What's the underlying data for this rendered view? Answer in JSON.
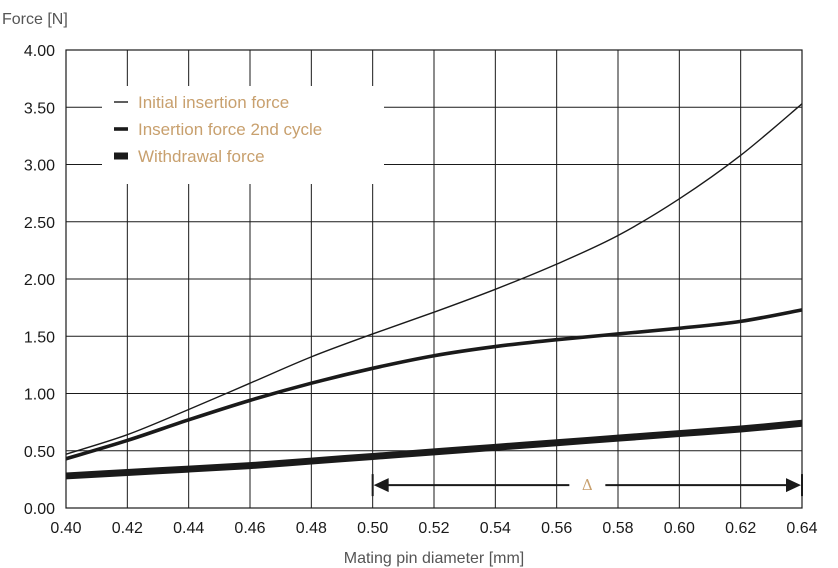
{
  "chart_data": {
    "type": "line",
    "xlabel": "Mating pin diameter [mm]",
    "ylabel": "Force [N]",
    "xlim": [
      0.4,
      0.64
    ],
    "ylim": [
      0.0,
      4.0
    ],
    "x_ticks": [
      "0.40",
      "0.42",
      "0.44",
      "0.46",
      "0.48",
      "0.50",
      "0.52",
      "0.54",
      "0.56",
      "0.58",
      "0.60",
      "0.62",
      "0.64"
    ],
    "y_ticks": [
      "0.00",
      "0.50",
      "1.00",
      "1.50",
      "2.00",
      "2.50",
      "3.00",
      "3.50",
      "4.00"
    ],
    "grid": true,
    "legend_position": "top-left",
    "series": [
      {
        "name": "Initial insertion force",
        "color": "#1a1a1a",
        "weight": "thin",
        "x": [
          0.4,
          0.42,
          0.44,
          0.46,
          0.48,
          0.5,
          0.52,
          0.54,
          0.56,
          0.58,
          0.6,
          0.62,
          0.64
        ],
        "y": [
          0.47,
          0.64,
          0.86,
          1.09,
          1.32,
          1.52,
          1.71,
          1.91,
          2.13,
          2.38,
          2.7,
          3.08,
          3.53
        ]
      },
      {
        "name": "Insertion force 2nd cycle",
        "color": "#1a1a1a",
        "weight": "medium",
        "x": [
          0.4,
          0.42,
          0.44,
          0.46,
          0.48,
          0.5,
          0.52,
          0.54,
          0.56,
          0.58,
          0.6,
          0.62,
          0.64
        ],
        "y": [
          0.43,
          0.59,
          0.77,
          0.94,
          1.09,
          1.22,
          1.33,
          1.41,
          1.47,
          1.52,
          1.57,
          1.63,
          1.73
        ]
      },
      {
        "name": "Withdrawal force",
        "color": "#1a1a1a",
        "weight": "thick",
        "x": [
          0.4,
          0.42,
          0.44,
          0.46,
          0.48,
          0.5,
          0.52,
          0.54,
          0.56,
          0.58,
          0.6,
          0.62,
          0.64
        ],
        "y": [
          0.28,
          0.31,
          0.34,
          0.37,
          0.41,
          0.45,
          0.49,
          0.53,
          0.57,
          0.61,
          0.65,
          0.69,
          0.74
        ]
      }
    ],
    "annotations": [
      {
        "type": "double-arrow",
        "label": "Δ",
        "x_start": 0.5,
        "x_end": 0.64,
        "y": 0.2
      }
    ]
  }
}
